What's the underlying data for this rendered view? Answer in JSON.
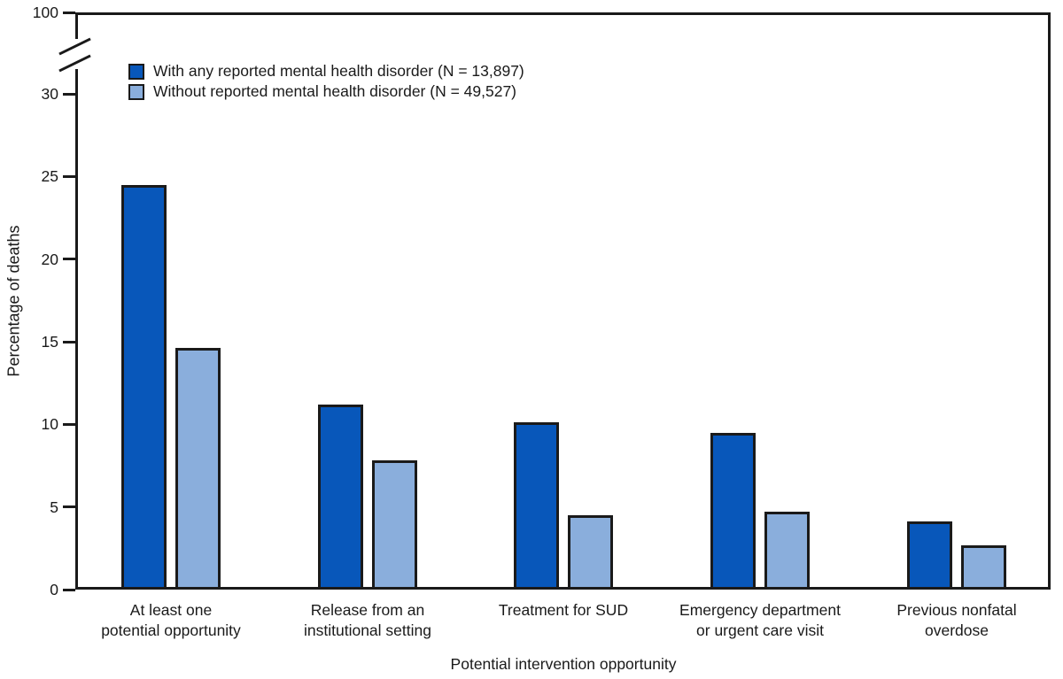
{
  "figure": {
    "y_axis_title": "Percentage of deaths",
    "x_axis_title": "Potential intervention opportunity"
  },
  "chart_data": {
    "type": "bar",
    "title": "",
    "xlabel": "Potential intervention opportunity",
    "ylabel": "Percentage of deaths",
    "categories": [
      "At least one\npotential opportunity",
      "Release from an\ninstitutional setting",
      "Treatment for SUD",
      "Emergency department\nor urgent care visit",
      "Previous nonfatal\noverdose"
    ],
    "series": [
      {
        "name": "With any reported mental health disorder (N = 13,897)",
        "color": "#0857BA",
        "values": [
          24.5,
          11.2,
          10.1,
          9.5,
          4.1
        ]
      },
      {
        "name": "Without reported mental health disorder (N = 49,527)",
        "color": "#8AAEDC",
        "values": [
          14.6,
          7.8,
          4.5,
          4.7,
          2.7
        ]
      }
    ],
    "y_ticks": [
      0,
      5,
      10,
      15,
      20,
      25,
      30
    ],
    "y_break_top_label": "100",
    "ylim": [
      0,
      30
    ],
    "axis_break": true,
    "bar_outline_color": "#1a1a1a",
    "legend_position": "top-left-inside",
    "grid": false
  }
}
